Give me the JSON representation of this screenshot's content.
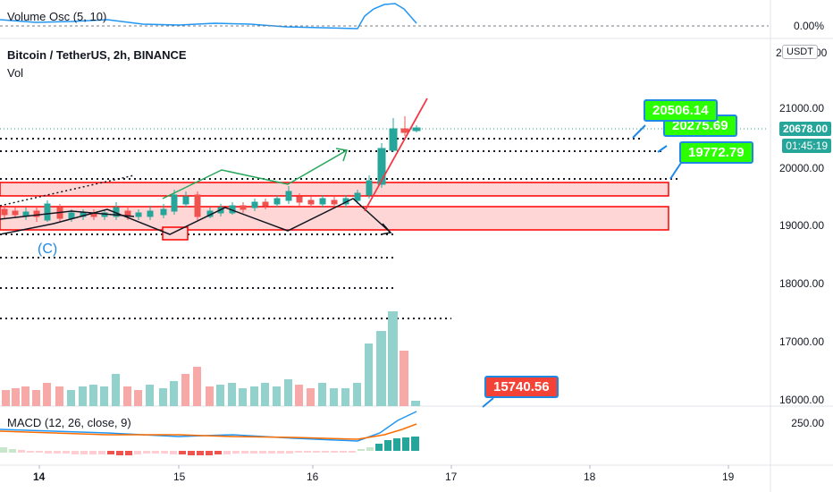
{
  "symbol_title": "Bitcoin / TetherUS, 2h, BINANCE",
  "volume_label": "Vol",
  "volume_osc_label": "Volume Osc (5, 10)",
  "volume_osc_value": "0.00%",
  "macd_label": "MACD (12, 26, close, 9)",
  "currency_button": "USDT",
  "wave_label": "(C)",
  "price_axis": [
    "21000.00",
    "20000.00",
    "19000.00",
    "18000.00",
    "17000.00",
    "16000.00"
  ],
  "macd_axis": "250.00",
  "time_axis": [
    "14",
    "15",
    "16",
    "17",
    "18",
    "19"
  ],
  "current_price": "20678.00",
  "countdown": "01:45:19",
  "badges": {
    "b1": "20506.14",
    "b2": "20275.69",
    "b3": "19772.79",
    "b4": "15740.56"
  },
  "colors": {
    "up": "#26a69a",
    "down": "#ef5350",
    "zone_fill": "#ffd6d6",
    "zone_border": "#ff0000",
    "badge_green": "#2bff00",
    "badge_red": "#f44336",
    "badge_border": "#1e88e5",
    "trend_green": "#26a65a",
    "trend_black": "#131722",
    "trend_red": "#f23645",
    "osc_line": "#2196f3"
  }
}
